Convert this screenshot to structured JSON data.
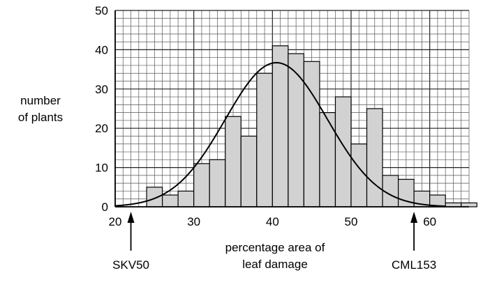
{
  "chart_data": {
    "type": "bar",
    "title": "",
    "ylabel": [
      "number",
      "of plants"
    ],
    "xlabel": [
      "percentage area of",
      "leaf damage"
    ],
    "xlim": [
      20,
      65
    ],
    "ylim": [
      0,
      50
    ],
    "x_ticks": [
      20,
      30,
      40,
      50,
      60
    ],
    "y_ticks": [
      0,
      10,
      20,
      30,
      40,
      50
    ],
    "grid": true,
    "bin_width": 2,
    "bins": [
      {
        "start": 24,
        "value": 5
      },
      {
        "start": 26,
        "value": 3
      },
      {
        "start": 28,
        "value": 4
      },
      {
        "start": 30,
        "value": 11
      },
      {
        "start": 32,
        "value": 12
      },
      {
        "start": 34,
        "value": 23
      },
      {
        "start": 36,
        "value": 18
      },
      {
        "start": 38,
        "value": 34
      },
      {
        "start": 40,
        "value": 41
      },
      {
        "start": 42,
        "value": 39
      },
      {
        "start": 44,
        "value": 37
      },
      {
        "start": 46,
        "value": 24
      },
      {
        "start": 48,
        "value": 28
      },
      {
        "start": 50,
        "value": 16
      },
      {
        "start": 52,
        "value": 25
      },
      {
        "start": 54,
        "value": 8
      },
      {
        "start": 56,
        "value": 7
      },
      {
        "start": 58,
        "value": 4
      },
      {
        "start": 60,
        "value": 3
      },
      {
        "start": 62,
        "value": 1
      },
      {
        "start": 64,
        "value": 1
      }
    ],
    "curve": {
      "type": "normal",
      "peak_x": 40.5,
      "peak_y": 36.7,
      "sd": 6.5
    },
    "annotations": [
      {
        "label": "SKV50",
        "x": 22
      },
      {
        "label": "CML153",
        "x": 58
      }
    ]
  }
}
